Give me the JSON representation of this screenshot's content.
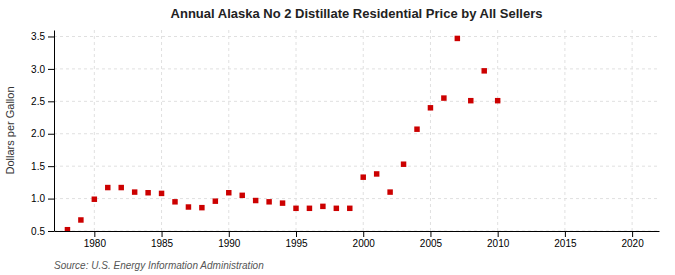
{
  "chart_data": {
    "type": "scatter",
    "title": "Annual Alaska No 2 Distillate Residential Price by All Sellers",
    "y_label": "Dollars per Gallon",
    "annotations": [
      "Source: U.S. Energy Information Administration"
    ],
    "x": [
      1978,
      1979,
      1980,
      1981,
      1982,
      1983,
      1984,
      1985,
      1986,
      1987,
      1988,
      1989,
      1990,
      1991,
      1992,
      1993,
      1994,
      1995,
      1996,
      1997,
      1998,
      1999,
      2000,
      2001,
      2002,
      2003,
      2004,
      2005,
      2006,
      2007,
      2008,
      2009,
      2010
    ],
    "values": [
      0.52,
      0.67,
      0.99,
      1.17,
      1.17,
      1.1,
      1.09,
      1.08,
      0.95,
      0.87,
      0.86,
      0.96,
      1.09,
      1.05,
      0.97,
      0.95,
      0.93,
      0.85,
      0.85,
      0.88,
      0.85,
      0.85,
      1.33,
      1.38,
      1.1,
      1.53,
      2.07,
      2.4,
      2.55,
      3.47,
      2.51,
      2.97,
      2.51
    ],
    "color": "#cc0000",
    "marker": "square",
    "xlim": [
      1977,
      2022
    ],
    "ylim": [
      0.5,
      3.6
    ],
    "xticks": [
      1980,
      1985,
      1990,
      1995,
      2000,
      2005,
      2010,
      2015,
      2020
    ],
    "yticks": [
      0.5,
      {
        "value": 1.0,
        "label": "1.0"
      },
      1.5,
      {
        "value": 2.0,
        "label": "2.0"
      },
      2.5,
      {
        "value": 3.0,
        "label": "3.0"
      },
      3.5
    ],
    "grid": true
  }
}
